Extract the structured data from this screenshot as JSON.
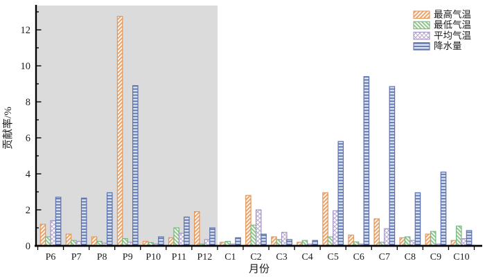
{
  "chart_data": {
    "type": "bar",
    "title": "",
    "xlabel": "月份",
    "ylabel": "贡献率/%",
    "ylim": [
      0,
      13.35
    ],
    "yticks": [
      0,
      2,
      4,
      6,
      8,
      10,
      12
    ],
    "grid": false,
    "legend_position": "top-right",
    "categories": [
      "P6",
      "P7",
      "P8",
      "P9",
      "P10",
      "P11",
      "P12",
      "C1",
      "C2",
      "C3",
      "C4",
      "C5",
      "C6",
      "C7",
      "C8",
      "C9",
      "C10"
    ],
    "series": [
      {
        "name": "最高气温",
        "key": "max-temp",
        "pattern": "diagonal-up",
        "border": "#e5965c",
        "hatch": "#eda770",
        "fill": "#ffffff",
        "values": [
          1.2,
          0.65,
          0.5,
          12.75,
          0.25,
          0.45,
          1.9,
          0.2,
          2.8,
          0.5,
          0.2,
          2.95,
          0.6,
          1.5,
          0.45,
          0.65,
          0.3
        ]
      },
      {
        "name": "最低气温",
        "key": "min-temp",
        "pattern": "diagonal-down",
        "border": "#7ab585",
        "hatch": "#96c890",
        "fill": "#ffffff",
        "values": [
          0.5,
          0.3,
          0.25,
          0.4,
          0.18,
          1.0,
          0.1,
          0.25,
          1.15,
          0.35,
          0.3,
          0.5,
          0.22,
          0.2,
          0.5,
          0.8,
          1.1
        ]
      },
      {
        "name": "平均气温",
        "key": "avg-temp",
        "pattern": "crosshatch",
        "border": "#a396c3",
        "hatch": "#b9abd0",
        "fill": "#ffffff",
        "values": [
          1.4,
          0.25,
          0.15,
          0.2,
          0.1,
          0.7,
          0.35,
          0.1,
          2.0,
          0.75,
          0.1,
          1.95,
          0.1,
          0.95,
          0.3,
          0.1,
          0.4
        ]
      },
      {
        "name": "降水量",
        "key": "precipitation",
        "pattern": "horizontal",
        "border": "#5c72ac",
        "hatch": "#5f73aa",
        "fill": "#d9e2f1",
        "values": [
          2.7,
          2.65,
          2.95,
          8.9,
          0.5,
          1.6,
          1.0,
          0.45,
          0.65,
          0.35,
          0.3,
          5.8,
          9.4,
          8.85,
          2.95,
          4.1,
          0.85
        ]
      }
    ],
    "highlight_region": {
      "from": "P6",
      "to": "P12",
      "color": "#dbdbdb"
    }
  }
}
